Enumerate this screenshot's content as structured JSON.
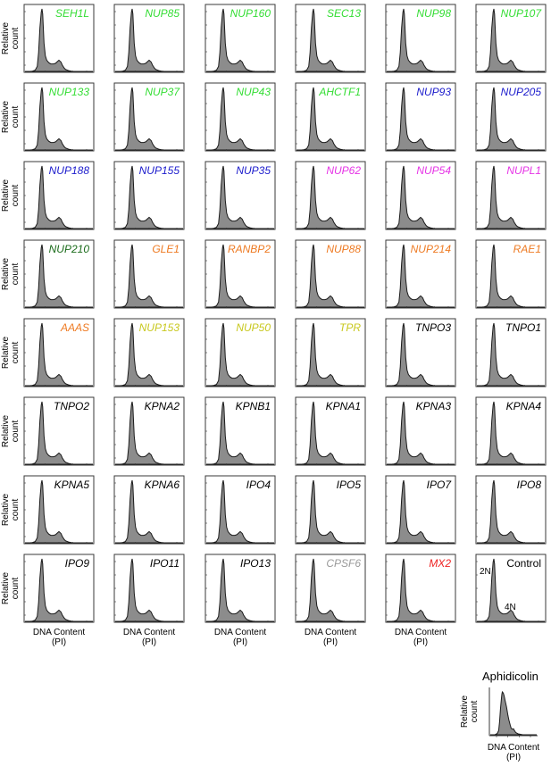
{
  "axis_text": {
    "ylabel_line1": "Relative",
    "ylabel_line2": "count",
    "xlabel_line1": "DNA Content",
    "xlabel_line2": "(PI)"
  },
  "colors": {
    "histogram_fill": "#8c8c8c",
    "histogram_stroke": "#1a1a1a",
    "frame": "#3a3a3a",
    "green": "#33dd33",
    "blue": "#1a1acc",
    "magenta": "#e633e6",
    "dark_green": "#1a6b1a",
    "orange": "#ee7a22",
    "olive": "#c8c81e",
    "black": "#000000",
    "gray": "#9a9a9a",
    "red": "#ee2222"
  },
  "chart_data": {
    "type": "area",
    "description_of_shape": "flow cytometry DNA content histograms (2N peak, S phase, 4N peak)",
    "panels": [
      {
        "label": "SEH1L",
        "color": "green",
        "profile": "g1"
      },
      {
        "label": "NUP85",
        "color": "green",
        "profile": "g1"
      },
      {
        "label": "NUP160",
        "color": "green",
        "profile": "g1"
      },
      {
        "label": "SEC13",
        "color": "green",
        "profile": "g1"
      },
      {
        "label": "NUP98",
        "color": "green",
        "profile": "g1"
      },
      {
        "label": "NUP107",
        "color": "green",
        "profile": "g1"
      },
      {
        "label": "NUP133",
        "color": "green",
        "profile": "g1"
      },
      {
        "label": "NUP37",
        "color": "green",
        "profile": "g1"
      },
      {
        "label": "NUP43",
        "color": "green",
        "profile": "g1"
      },
      {
        "label": "AHCTF1",
        "color": "green",
        "profile": "g1"
      },
      {
        "label": "NUP93",
        "color": "blue",
        "profile": "g1"
      },
      {
        "label": "NUP205",
        "color": "blue",
        "profile": "g1"
      },
      {
        "label": "NUP188",
        "color": "blue",
        "profile": "g1"
      },
      {
        "label": "NUP155",
        "color": "blue",
        "profile": "g1"
      },
      {
        "label": "NUP35",
        "color": "blue",
        "profile": "g1"
      },
      {
        "label": "NUP62",
        "color": "magenta",
        "profile": "g1"
      },
      {
        "label": "NUP54",
        "color": "magenta",
        "profile": "g1"
      },
      {
        "label": "NUPL1",
        "color": "magenta",
        "profile": "g1"
      },
      {
        "label": "NUP210",
        "color": "dark_green",
        "profile": "g1"
      },
      {
        "label": "GLE1",
        "color": "orange",
        "profile": "g1"
      },
      {
        "label": "RANBP2",
        "color": "orange",
        "profile": "g1"
      },
      {
        "label": "NUP88",
        "color": "orange",
        "profile": "g1"
      },
      {
        "label": "NUP214",
        "color": "orange",
        "profile": "g1"
      },
      {
        "label": "RAE1",
        "color": "orange",
        "profile": "g1"
      },
      {
        "label": "AAAS",
        "color": "orange",
        "profile": "g1"
      },
      {
        "label": "NUP153",
        "color": "olive",
        "profile": "g1"
      },
      {
        "label": "NUP50",
        "color": "olive",
        "profile": "g1"
      },
      {
        "label": "TPR",
        "color": "olive",
        "profile": "g1"
      },
      {
        "label": "TNPO3",
        "color": "black",
        "profile": "g1"
      },
      {
        "label": "TNPO1",
        "color": "black",
        "profile": "g1"
      },
      {
        "label": "TNPO2",
        "color": "black",
        "profile": "g1"
      },
      {
        "label": "KPNA2",
        "color": "black",
        "profile": "g1"
      },
      {
        "label": "KPNB1",
        "color": "black",
        "profile": "g1"
      },
      {
        "label": "KPNA1",
        "color": "black",
        "profile": "g1"
      },
      {
        "label": "KPNA3",
        "color": "black",
        "profile": "g1"
      },
      {
        "label": "KPNA4",
        "color": "black",
        "profile": "g1"
      },
      {
        "label": "KPNA5",
        "color": "black",
        "profile": "g1"
      },
      {
        "label": "KPNA6",
        "color": "black",
        "profile": "g1"
      },
      {
        "label": "IPO4",
        "color": "black",
        "profile": "g1"
      },
      {
        "label": "IPO5",
        "color": "black",
        "profile": "g1"
      },
      {
        "label": "IPO7",
        "color": "black",
        "profile": "g1"
      },
      {
        "label": "IPO8",
        "color": "black",
        "profile": "g1"
      },
      {
        "label": "IPO9",
        "color": "black",
        "profile": "g1"
      },
      {
        "label": "IPO11",
        "color": "black",
        "profile": "g1"
      },
      {
        "label": "IPO13",
        "color": "black",
        "profile": "g1"
      },
      {
        "label": "CPSF6",
        "color": "gray",
        "profile": "g1"
      },
      {
        "label": "MX2",
        "color": "red",
        "profile": "g1"
      },
      {
        "label": "Control",
        "color": "black",
        "profile": "g1",
        "peak_labels": [
          "2N",
          "4N"
        ]
      }
    ],
    "extra_panel": {
      "label": "Aphidicolin",
      "color": "black",
      "profile": "broad"
    },
    "profiles": {
      "g1": {
        "x": [
          0,
          5,
          10,
          15,
          18,
          20,
          22,
          24,
          25,
          26,
          27,
          28,
          30,
          32,
          35,
          38,
          42,
          45,
          48,
          50,
          53,
          55,
          58,
          60,
          65,
          70,
          80,
          90,
          100
        ],
        "y": [
          0,
          0,
          0,
          0.02,
          0.08,
          0.3,
          0.7,
          0.95,
          1.0,
          0.92,
          0.7,
          0.45,
          0.25,
          0.18,
          0.14,
          0.12,
          0.12,
          0.13,
          0.16,
          0.18,
          0.15,
          0.1,
          0.05,
          0.03,
          0.01,
          0,
          0,
          0,
          0
        ]
      },
      "broad": {
        "x": [
          0,
          10,
          15,
          18,
          20,
          22,
          24,
          25,
          26,
          28,
          30,
          32,
          35,
          38,
          40,
          43,
          45,
          48,
          50,
          52,
          55,
          60,
          70,
          80,
          100
        ],
        "y": [
          0,
          0,
          0.03,
          0.1,
          0.3,
          0.6,
          0.85,
          0.95,
          1.0,
          0.97,
          0.9,
          0.8,
          0.65,
          0.45,
          0.35,
          0.22,
          0.15,
          0.13,
          0.14,
          0.1,
          0.05,
          0.02,
          0,
          0,
          0
        ]
      }
    }
  }
}
